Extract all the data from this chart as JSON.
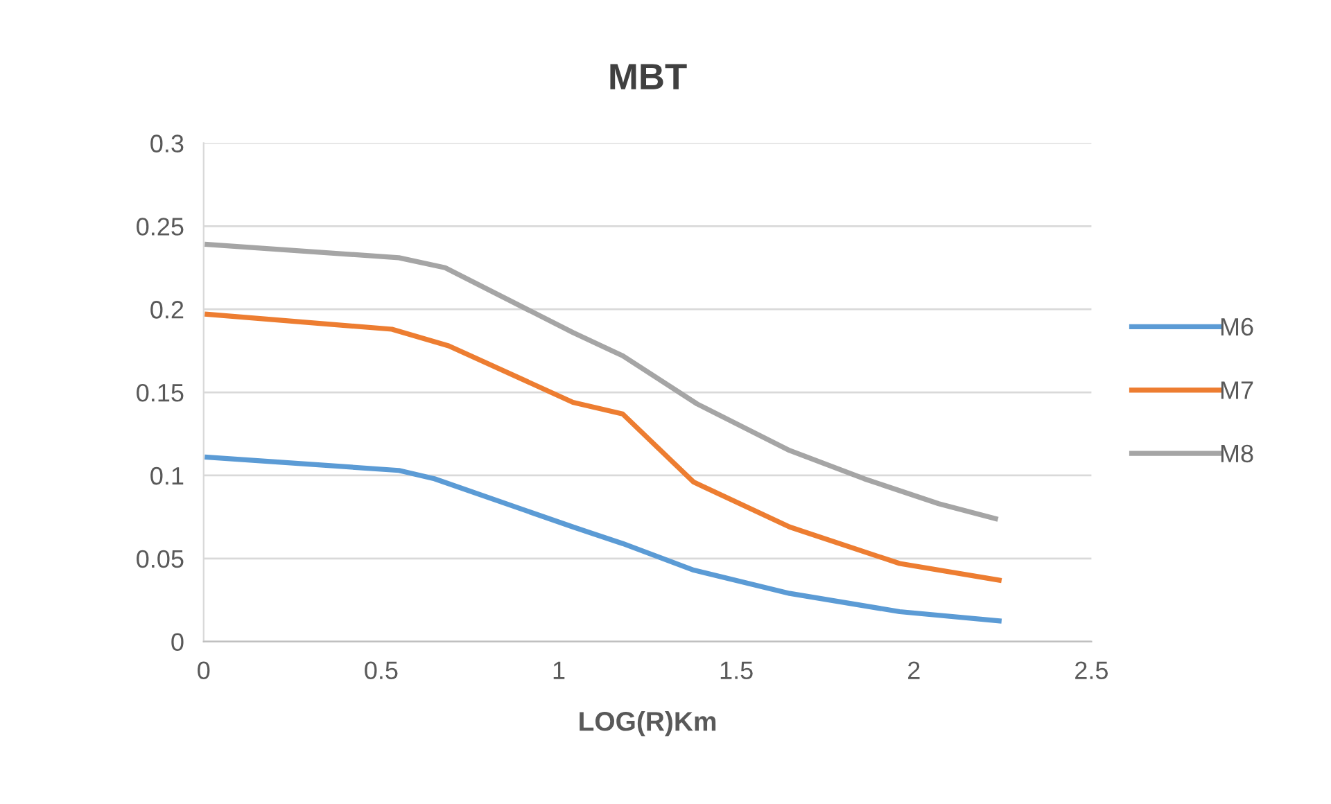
{
  "chart_data": {
    "type": "line",
    "title": "MBT",
    "xlabel": "LOG(R)Km",
    "xlim": [
      0,
      2.5
    ],
    "xticks": [
      0,
      0.5,
      1,
      1.5,
      2,
      2.5
    ],
    "ylim": [
      0,
      0.3
    ],
    "yticks": [
      0,
      0.05,
      0.1,
      0.15,
      0.2,
      0.25,
      0.3
    ],
    "grid": "y",
    "legend": "right",
    "marker": "none",
    "line_style": "solid",
    "series": [
      {
        "name": "M6",
        "color": "#5b9bd5",
        "x": [
          0.01,
          0.55,
          0.65,
          1.04,
          1.18,
          1.38,
          1.65,
          1.96,
          2.24
        ],
        "values": [
          0.111,
          0.103,
          0.098,
          0.069,
          0.059,
          0.043,
          0.029,
          0.018,
          0.0125
        ]
      },
      {
        "name": "M7",
        "color": "#ed7d31",
        "x": [
          0.01,
          0.53,
          0.69,
          1.04,
          1.18,
          1.38,
          1.65,
          1.96,
          2.24
        ],
        "values": [
          0.197,
          0.188,
          0.178,
          0.144,
          0.137,
          0.096,
          0.069,
          0.047,
          0.037
        ]
      },
      {
        "name": "M8",
        "color": "#a5a5a5",
        "x": [
          0.01,
          0.55,
          0.68,
          1.04,
          1.18,
          1.39,
          1.65,
          1.86,
          2.07,
          2.23
        ],
        "values": [
          0.239,
          0.231,
          0.225,
          0.186,
          0.172,
          0.143,
          0.115,
          0.098,
          0.083,
          0.074
        ]
      }
    ]
  }
}
